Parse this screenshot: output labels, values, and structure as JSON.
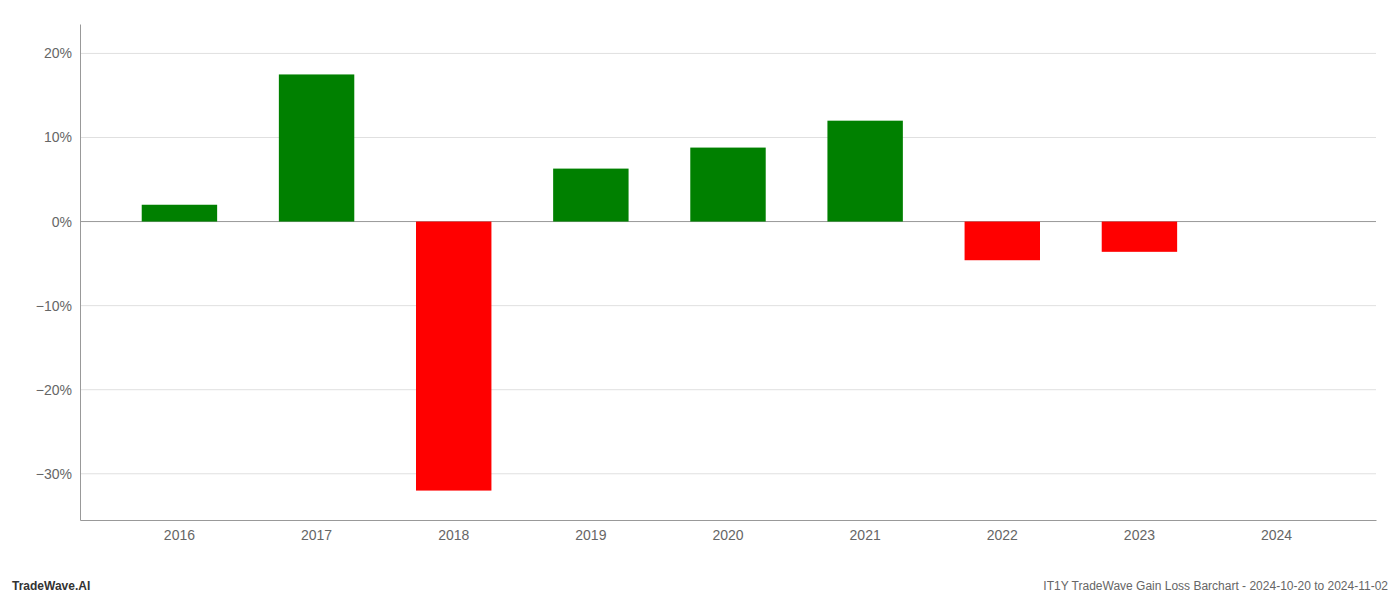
{
  "chart_data": {
    "type": "bar",
    "categories": [
      "2016",
      "2017",
      "2018",
      "2019",
      "2020",
      "2021",
      "2022",
      "2023",
      "2024"
    ],
    "values": [
      0.02,
      0.175,
      -0.32,
      0.063,
      0.088,
      0.12,
      -0.046,
      -0.036,
      0.0
    ],
    "colors": [
      "#008000",
      "#008000",
      "#ff0000",
      "#008000",
      "#008000",
      "#008000",
      "#ff0000",
      "#ff0000",
      "#008000"
    ],
    "ylim": [
      -0.355,
      0.235
    ],
    "yticks": [
      {
        "value": -0.3,
        "label": "−30%"
      },
      {
        "value": -0.2,
        "label": "−20%"
      },
      {
        "value": -0.1,
        "label": "−10%"
      },
      {
        "value": 0.0,
        "label": "0%"
      },
      {
        "value": 0.1,
        "label": "10%"
      },
      {
        "value": 0.2,
        "label": "20%"
      }
    ],
    "grid": true,
    "annotations": [
      "TradeWave.AI",
      "IT1Y TradeWave Gain Loss Barchart - 2024-10-20 to 2024-11-02"
    ]
  }
}
